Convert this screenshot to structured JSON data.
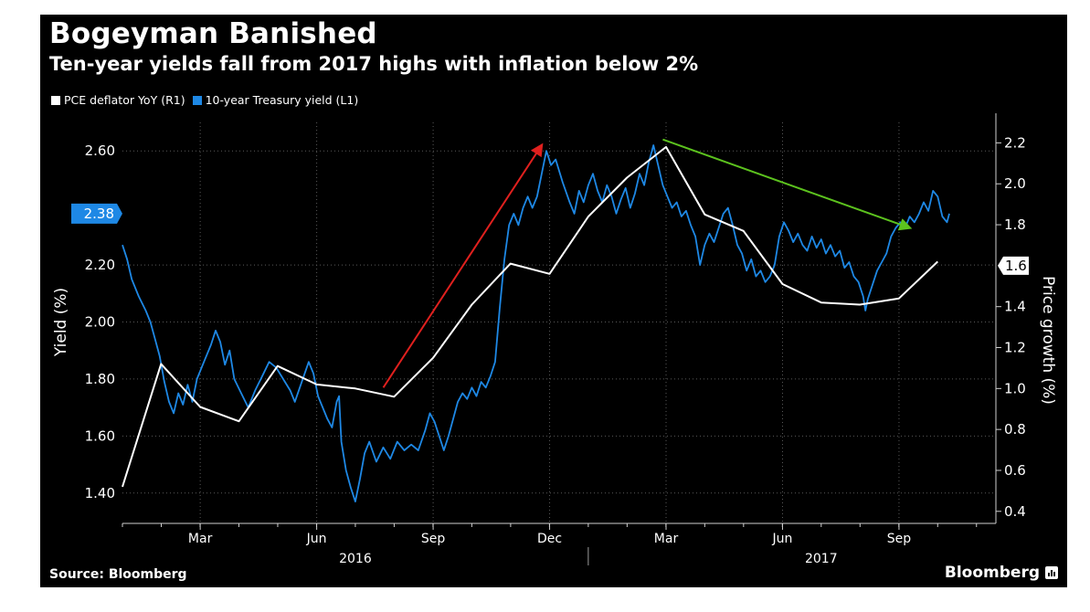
{
  "header": {
    "title": "Bogeyman Banished",
    "subtitle": "Ten-year yields fall from 2017 highs with inflation below 2%"
  },
  "legend": [
    {
      "label": "PCE deflator YoY (R1)",
      "color": "#ffffff"
    },
    {
      "label": "10-year Treasury yield (L1)",
      "color": "#1e88e5"
    }
  ],
  "footer": {
    "source": "Source: Bloomberg",
    "brand": "Bloomberg",
    "brand_icon": "bloomberg-terminal-icon"
  },
  "colors": {
    "background": "#000000",
    "yield": "#1e88e5",
    "pce": "#ffffff",
    "arrow_up": "#e0201e",
    "arrow_down": "#5cc21e",
    "grid": "#5a5a5a"
  },
  "chart_data": {
    "type": "line",
    "title": "Bogeyman Banished",
    "subtitle": "Ten-year yields fall from 2017 highs with inflation below 2%",
    "x_range": [
      2016.0,
      2017.875
    ],
    "x_ticks": [
      {
        "label": "Mar",
        "t": 2016.167
      },
      {
        "label": "Jun",
        "t": 2016.417
      },
      {
        "label": "Sep",
        "t": 2016.667
      },
      {
        "label": "Dec",
        "t": 2016.917
      },
      {
        "label": "Mar",
        "t": 2017.167
      },
      {
        "label": "Jun",
        "t": 2017.417
      },
      {
        "label": "Sep",
        "t": 2017.667
      }
    ],
    "x_years": [
      {
        "label": "2016",
        "t": 2016.5
      },
      {
        "label": "2017",
        "t": 2017.5
      }
    ],
    "year_divider_t": 2017.0,
    "left_axis": {
      "label": "Yield (%)",
      "min": 1.3,
      "max": 2.7,
      "ticks": [
        "2.60",
        "2.20",
        "2.00",
        "1.80",
        "1.60",
        "1.40"
      ],
      "current_value": "2.38"
    },
    "right_axis": {
      "label": "Price growth (%)",
      "min": 0.35,
      "max": 2.3,
      "ticks": [
        "2.2",
        "2.0",
        "1.8",
        "1.4",
        "1.2",
        "1.0",
        "0.8",
        "0.6",
        "0.4"
      ],
      "current_value": "1.6"
    },
    "series": [
      {
        "name": "10-year Treasury yield (L1)",
        "axis": "left",
        "color": "#1e88e5",
        "points": [
          [
            2016.0,
            2.27
          ],
          [
            2016.01,
            2.22
          ],
          [
            2016.02,
            2.15
          ],
          [
            2016.035,
            2.09
          ],
          [
            2016.05,
            2.04
          ],
          [
            2016.06,
            2.0
          ],
          [
            2016.07,
            1.94
          ],
          [
            2016.08,
            1.88
          ],
          [
            2016.09,
            1.79
          ],
          [
            2016.1,
            1.72
          ],
          [
            2016.11,
            1.68
          ],
          [
            2016.12,
            1.75
          ],
          [
            2016.13,
            1.71
          ],
          [
            2016.14,
            1.78
          ],
          [
            2016.15,
            1.72
          ],
          [
            2016.16,
            1.8
          ],
          [
            2016.175,
            1.86
          ],
          [
            2016.19,
            1.92
          ],
          [
            2016.2,
            1.97
          ],
          [
            2016.21,
            1.93
          ],
          [
            2016.22,
            1.85
          ],
          [
            2016.23,
            1.9
          ],
          [
            2016.24,
            1.8
          ],
          [
            2016.255,
            1.75
          ],
          [
            2016.27,
            1.7
          ],
          [
            2016.285,
            1.76
          ],
          [
            2016.3,
            1.81
          ],
          [
            2016.315,
            1.86
          ],
          [
            2016.33,
            1.84
          ],
          [
            2016.345,
            1.8
          ],
          [
            2016.36,
            1.76
          ],
          [
            2016.37,
            1.72
          ],
          [
            2016.385,
            1.79
          ],
          [
            2016.4,
            1.86
          ],
          [
            2016.41,
            1.82
          ],
          [
            2016.42,
            1.74
          ],
          [
            2016.43,
            1.7
          ],
          [
            2016.44,
            1.66
          ],
          [
            2016.45,
            1.63
          ],
          [
            2016.46,
            1.72
          ],
          [
            2016.465,
            1.74
          ],
          [
            2016.47,
            1.58
          ],
          [
            2016.48,
            1.48
          ],
          [
            2016.49,
            1.42
          ],
          [
            2016.5,
            1.37
          ],
          [
            2016.51,
            1.45
          ],
          [
            2016.52,
            1.54
          ],
          [
            2016.53,
            1.58
          ],
          [
            2016.545,
            1.51
          ],
          [
            2016.56,
            1.56
          ],
          [
            2016.575,
            1.52
          ],
          [
            2016.59,
            1.58
          ],
          [
            2016.605,
            1.55
          ],
          [
            2016.62,
            1.57
          ],
          [
            2016.635,
            1.55
          ],
          [
            2016.65,
            1.62
          ],
          [
            2016.66,
            1.68
          ],
          [
            2016.67,
            1.65
          ],
          [
            2016.68,
            1.6
          ],
          [
            2016.69,
            1.55
          ],
          [
            2016.7,
            1.6
          ],
          [
            2016.71,
            1.66
          ],
          [
            2016.72,
            1.72
          ],
          [
            2016.73,
            1.75
          ],
          [
            2016.74,
            1.73
          ],
          [
            2016.75,
            1.77
          ],
          [
            2016.76,
            1.74
          ],
          [
            2016.77,
            1.79
          ],
          [
            2016.78,
            1.77
          ],
          [
            2016.79,
            1.81
          ],
          [
            2016.8,
            1.86
          ],
          [
            2016.81,
            2.05
          ],
          [
            2016.82,
            2.22
          ],
          [
            2016.83,
            2.34
          ],
          [
            2016.84,
            2.38
          ],
          [
            2016.85,
            2.34
          ],
          [
            2016.86,
            2.4
          ],
          [
            2016.87,
            2.44
          ],
          [
            2016.88,
            2.4
          ],
          [
            2016.89,
            2.44
          ],
          [
            2016.9,
            2.52
          ],
          [
            2016.91,
            2.6
          ],
          [
            2016.92,
            2.55
          ],
          [
            2016.93,
            2.57
          ],
          [
            2016.945,
            2.49
          ],
          [
            2016.96,
            2.42
          ],
          [
            2016.97,
            2.38
          ],
          [
            2016.98,
            2.46
          ],
          [
            2016.99,
            2.42
          ],
          [
            2017.0,
            2.48
          ],
          [
            2017.01,
            2.52
          ],
          [
            2017.02,
            2.46
          ],
          [
            2017.03,
            2.42
          ],
          [
            2017.04,
            2.48
          ],
          [
            2017.05,
            2.44
          ],
          [
            2017.06,
            2.38
          ],
          [
            2017.07,
            2.43
          ],
          [
            2017.08,
            2.47
          ],
          [
            2017.09,
            2.4
          ],
          [
            2017.1,
            2.45
          ],
          [
            2017.11,
            2.52
          ],
          [
            2017.12,
            2.48
          ],
          [
            2017.13,
            2.56
          ],
          [
            2017.14,
            2.62
          ],
          [
            2017.15,
            2.55
          ],
          [
            2017.16,
            2.48
          ],
          [
            2017.17,
            2.44
          ],
          [
            2017.18,
            2.4
          ],
          [
            2017.19,
            2.42
          ],
          [
            2017.2,
            2.37
          ],
          [
            2017.21,
            2.39
          ],
          [
            2017.22,
            2.34
          ],
          [
            2017.23,
            2.3
          ],
          [
            2017.24,
            2.2
          ],
          [
            2017.25,
            2.27
          ],
          [
            2017.26,
            2.31
          ],
          [
            2017.27,
            2.28
          ],
          [
            2017.28,
            2.33
          ],
          [
            2017.29,
            2.38
          ],
          [
            2017.3,
            2.4
          ],
          [
            2017.31,
            2.34
          ],
          [
            2017.32,
            2.27
          ],
          [
            2017.33,
            2.24
          ],
          [
            2017.34,
            2.18
          ],
          [
            2017.35,
            2.22
          ],
          [
            2017.36,
            2.16
          ],
          [
            2017.37,
            2.18
          ],
          [
            2017.38,
            2.14
          ],
          [
            2017.39,
            2.16
          ],
          [
            2017.4,
            2.2
          ],
          [
            2017.41,
            2.3
          ],
          [
            2017.42,
            2.35
          ],
          [
            2017.43,
            2.32
          ],
          [
            2017.44,
            2.28
          ],
          [
            2017.45,
            2.31
          ],
          [
            2017.46,
            2.27
          ],
          [
            2017.47,
            2.25
          ],
          [
            2017.48,
            2.3
          ],
          [
            2017.49,
            2.26
          ],
          [
            2017.5,
            2.29
          ],
          [
            2017.51,
            2.24
          ],
          [
            2017.52,
            2.27
          ],
          [
            2017.53,
            2.23
          ],
          [
            2017.54,
            2.25
          ],
          [
            2017.55,
            2.19
          ],
          [
            2017.56,
            2.21
          ],
          [
            2017.57,
            2.16
          ],
          [
            2017.58,
            2.14
          ],
          [
            2017.59,
            2.09
          ],
          [
            2017.595,
            2.04
          ],
          [
            2017.6,
            2.08
          ],
          [
            2017.61,
            2.13
          ],
          [
            2017.62,
            2.18
          ],
          [
            2017.63,
            2.21
          ],
          [
            2017.64,
            2.24
          ],
          [
            2017.65,
            2.3
          ],
          [
            2017.66,
            2.33
          ],
          [
            2017.67,
            2.35
          ],
          [
            2017.68,
            2.33
          ],
          [
            2017.69,
            2.37
          ],
          [
            2017.7,
            2.35
          ],
          [
            2017.71,
            2.38
          ],
          [
            2017.72,
            2.42
          ],
          [
            2017.73,
            2.39
          ],
          [
            2017.74,
            2.46
          ],
          [
            2017.75,
            2.44
          ],
          [
            2017.76,
            2.37
          ],
          [
            2017.77,
            2.35
          ],
          [
            2017.775,
            2.38
          ]
        ]
      },
      {
        "name": "PCE deflator YoY (R1)",
        "axis": "right",
        "color": "#ffffff",
        "points": [
          [
            2016.0,
            0.52
          ],
          [
            2016.083,
            1.12
          ],
          [
            2016.167,
            0.91
          ],
          [
            2016.25,
            0.84
          ],
          [
            2016.333,
            1.11
          ],
          [
            2016.417,
            1.02
          ],
          [
            2016.5,
            1.0
          ],
          [
            2016.583,
            0.96
          ],
          [
            2016.667,
            1.15
          ],
          [
            2016.75,
            1.41
          ],
          [
            2016.833,
            1.61
          ],
          [
            2016.917,
            1.56
          ],
          [
            2017.0,
            1.84
          ],
          [
            2017.083,
            2.03
          ],
          [
            2017.167,
            2.18
          ],
          [
            2017.25,
            1.85
          ],
          [
            2017.333,
            1.77
          ],
          [
            2017.417,
            1.51
          ],
          [
            2017.5,
            1.42
          ],
          [
            2017.583,
            1.41
          ],
          [
            2017.667,
            1.44
          ],
          [
            2017.75,
            1.62
          ]
        ]
      }
    ],
    "annotations": [
      {
        "type": "arrow",
        "color": "#e0201e",
        "from": [
          2016.56,
          1.77
        ],
        "to": [
          2016.9,
          2.62
        ],
        "axis": "left"
      },
      {
        "type": "arrow",
        "color": "#5cc21e",
        "from": [
          2017.16,
          2.64
        ],
        "to": [
          2017.69,
          2.33
        ],
        "axis": "left"
      }
    ]
  }
}
